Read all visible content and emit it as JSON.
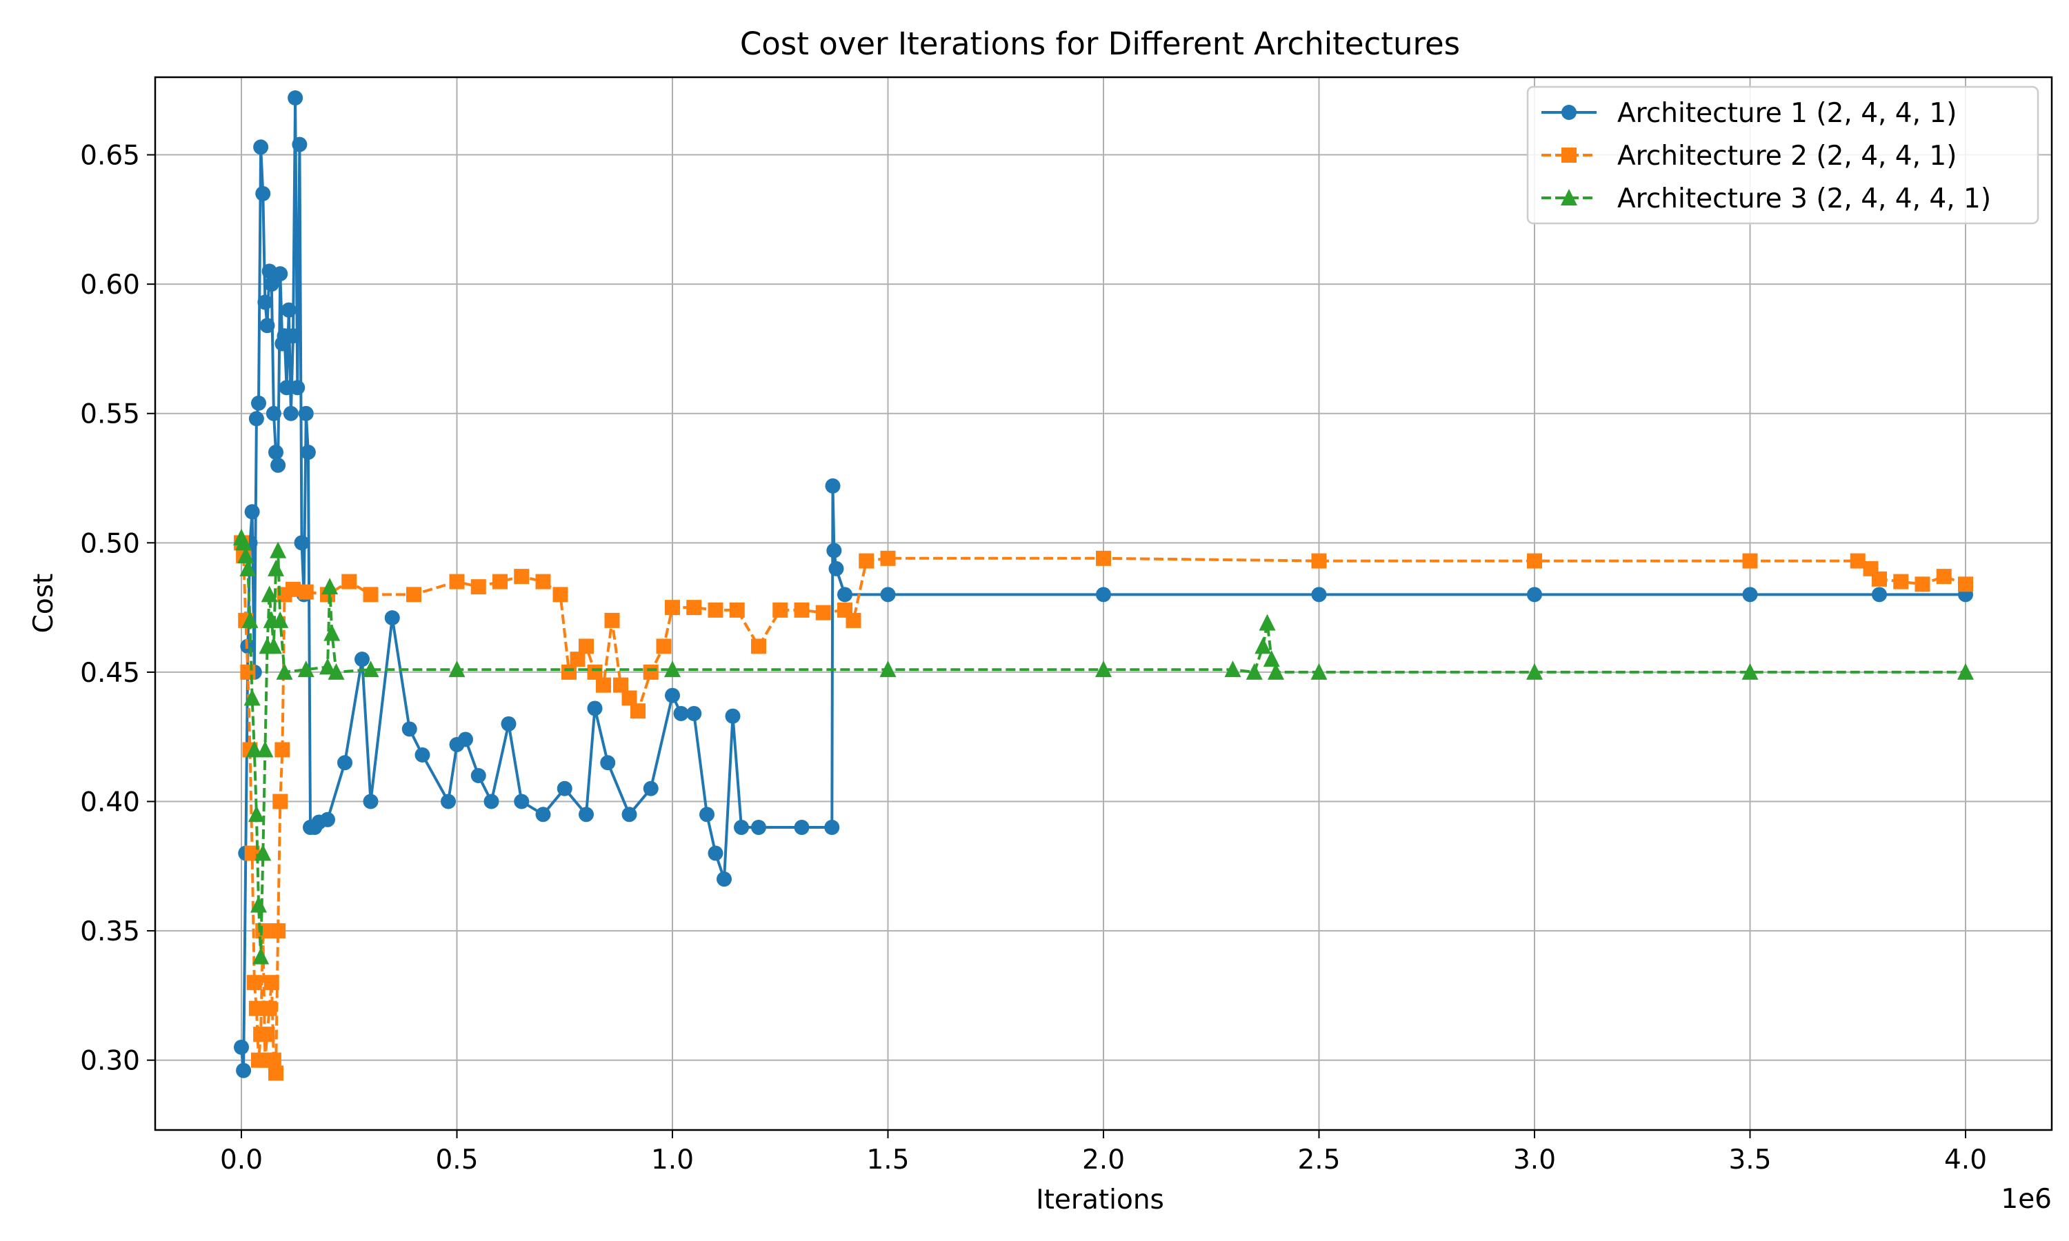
{
  "chart_data": {
    "type": "line",
    "title": "Cost over Iterations for Different Architectures",
    "xlabel": "Iterations",
    "ylabel": "Cost",
    "x_offset_label": "1e6",
    "xlim": [
      -0.2,
      4.2
    ],
    "ylim": [
      0.273,
      0.68
    ],
    "x_ticks": [
      0.0,
      0.5,
      1.0,
      1.5,
      2.0,
      2.5,
      3.0,
      3.5,
      4.0
    ],
    "x_tick_labels": [
      "0.0",
      "0.5",
      "1.0",
      "1.5",
      "2.0",
      "2.5",
      "3.0",
      "3.5",
      "4.0"
    ],
    "y_ticks": [
      0.3,
      0.35,
      0.4,
      0.45,
      0.5,
      0.55,
      0.6,
      0.65
    ],
    "y_tick_labels": [
      "0.30",
      "0.35",
      "0.40",
      "0.45",
      "0.50",
      "0.55",
      "0.60",
      "0.65"
    ],
    "grid": true,
    "legend_position": "top-right",
    "series": [
      {
        "name": "Architecture 1 (2, 4, 4, 1)",
        "color": "#1f77b4",
        "marker": "circle",
        "line_style": "solid",
        "x": [
          0.0,
          0.005,
          0.01,
          0.015,
          0.02,
          0.025,
          0.03,
          0.035,
          0.04,
          0.045,
          0.05,
          0.055,
          0.06,
          0.065,
          0.07,
          0.075,
          0.08,
          0.085,
          0.09,
          0.095,
          0.1,
          0.105,
          0.11,
          0.115,
          0.12,
          0.125,
          0.13,
          0.135,
          0.14,
          0.145,
          0.15,
          0.155,
          0.16,
          0.17,
          0.18,
          0.2,
          0.24,
          0.28,
          0.3,
          0.35,
          0.39,
          0.42,
          0.48,
          0.5,
          0.52,
          0.55,
          0.58,
          0.62,
          0.65,
          0.7,
          0.75,
          0.8,
          0.82,
          0.85,
          0.9,
          0.95,
          1.0,
          1.02,
          1.05,
          1.08,
          1.1,
          1.12,
          1.14,
          1.16,
          1.2,
          1.3,
          1.37,
          1.372,
          1.375,
          1.38,
          1.4,
          1.5,
          2.0,
          2.5,
          3.0,
          3.5,
          3.8,
          4.0
        ],
        "y": [
          0.305,
          0.296,
          0.38,
          0.46,
          0.5,
          0.512,
          0.45,
          0.548,
          0.554,
          0.653,
          0.635,
          0.593,
          0.584,
          0.605,
          0.6,
          0.55,
          0.535,
          0.53,
          0.604,
          0.577,
          0.58,
          0.56,
          0.59,
          0.55,
          0.58,
          0.672,
          0.56,
          0.654,
          0.5,
          0.48,
          0.55,
          0.535,
          0.39,
          0.39,
          0.392,
          0.393,
          0.415,
          0.455,
          0.4,
          0.471,
          0.428,
          0.418,
          0.4,
          0.422,
          0.424,
          0.41,
          0.4,
          0.43,
          0.4,
          0.395,
          0.405,
          0.395,
          0.436,
          0.415,
          0.395,
          0.405,
          0.441,
          0.434,
          0.434,
          0.395,
          0.38,
          0.37,
          0.433,
          0.39,
          0.39,
          0.39,
          0.39,
          0.522,
          0.497,
          0.49,
          0.48,
          0.48,
          0.48,
          0.48,
          0.48,
          0.48,
          0.48,
          0.48
        ]
      },
      {
        "name": "Architecture 2 (2, 4, 4, 1)",
        "color": "#ff7f0e",
        "marker": "square",
        "line_style": "dashed",
        "x": [
          0.0,
          0.005,
          0.01,
          0.015,
          0.02,
          0.025,
          0.03,
          0.035,
          0.04,
          0.045,
          0.05,
          0.055,
          0.06,
          0.065,
          0.07,
          0.075,
          0.08,
          0.085,
          0.09,
          0.095,
          0.1,
          0.12,
          0.15,
          0.2,
          0.25,
          0.3,
          0.4,
          0.5,
          0.55,
          0.6,
          0.65,
          0.7,
          0.74,
          0.76,
          0.78,
          0.8,
          0.82,
          0.84,
          0.86,
          0.88,
          0.9,
          0.92,
          0.95,
          0.98,
          1.0,
          1.05,
          1.1,
          1.15,
          1.2,
          1.25,
          1.3,
          1.35,
          1.4,
          1.42,
          1.45,
          1.5,
          2.0,
          2.5,
          3.0,
          3.5,
          3.75,
          3.78,
          3.8,
          3.85,
          3.9,
          3.95,
          4.0
        ],
        "y": [
          0.5,
          0.495,
          0.47,
          0.45,
          0.42,
          0.38,
          0.33,
          0.32,
          0.3,
          0.31,
          0.35,
          0.3,
          0.31,
          0.32,
          0.33,
          0.3,
          0.295,
          0.35,
          0.4,
          0.42,
          0.48,
          0.482,
          0.481,
          0.48,
          0.485,
          0.48,
          0.48,
          0.485,
          0.483,
          0.485,
          0.487,
          0.485,
          0.48,
          0.45,
          0.455,
          0.46,
          0.45,
          0.445,
          0.47,
          0.445,
          0.44,
          0.435,
          0.45,
          0.46,
          0.475,
          0.475,
          0.474,
          0.474,
          0.46,
          0.474,
          0.474,
          0.473,
          0.474,
          0.47,
          0.493,
          0.494,
          0.494,
          0.493,
          0.493,
          0.493,
          0.493,
          0.49,
          0.486,
          0.485,
          0.484,
          0.487,
          0.484
        ]
      },
      {
        "name": "Architecture 3 (2, 4, 4, 4, 1)",
        "color": "#2ca02c",
        "marker": "triangle",
        "line_style": "dashed",
        "x": [
          0.0,
          0.005,
          0.01,
          0.015,
          0.02,
          0.025,
          0.03,
          0.035,
          0.04,
          0.045,
          0.05,
          0.055,
          0.06,
          0.065,
          0.07,
          0.075,
          0.08,
          0.085,
          0.09,
          0.1,
          0.15,
          0.2,
          0.205,
          0.21,
          0.22,
          0.3,
          0.5,
          1.0,
          1.5,
          2.0,
          2.3,
          2.35,
          2.37,
          2.38,
          2.39,
          2.4,
          2.5,
          3.0,
          3.5,
          4.0
        ],
        "y": [
          0.502,
          0.5,
          0.495,
          0.49,
          0.47,
          0.44,
          0.42,
          0.395,
          0.36,
          0.34,
          0.38,
          0.42,
          0.46,
          0.48,
          0.47,
          0.46,
          0.49,
          0.497,
          0.47,
          0.45,
          0.451,
          0.452,
          0.483,
          0.465,
          0.45,
          0.451,
          0.451,
          0.451,
          0.451,
          0.451,
          0.451,
          0.45,
          0.46,
          0.469,
          0.455,
          0.45,
          0.45,
          0.45,
          0.45,
          0.45
        ]
      }
    ]
  }
}
